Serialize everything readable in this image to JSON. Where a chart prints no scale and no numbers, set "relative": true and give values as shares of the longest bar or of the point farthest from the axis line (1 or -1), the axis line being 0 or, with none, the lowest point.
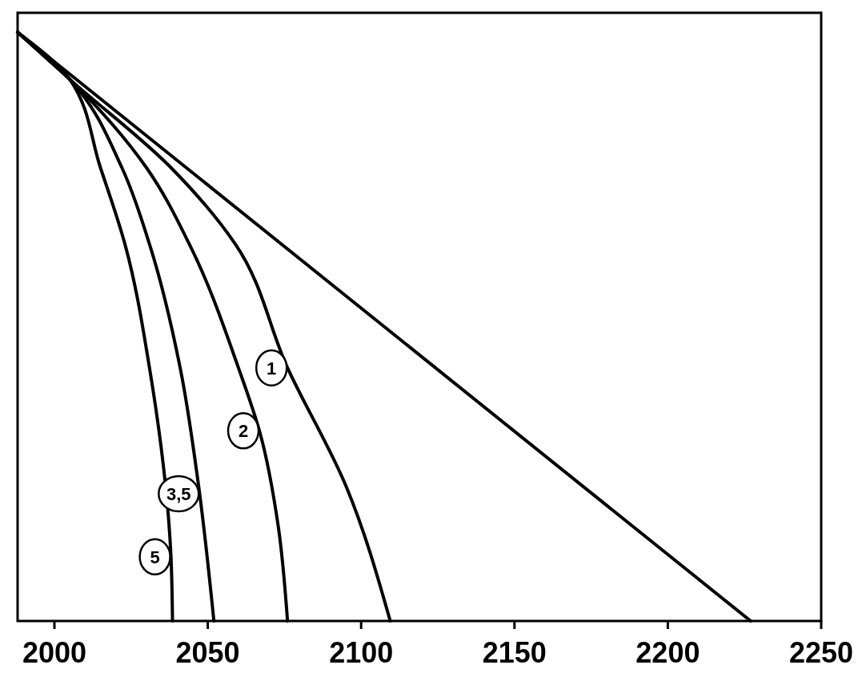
{
  "chart_data": {
    "type": "line",
    "relative": true,
    "xlim": [
      1988,
      2250
    ],
    "xticks": [
      2000,
      2050,
      2100,
      2150,
      2200,
      2250
    ],
    "tick_labels": "x",
    "grid": false,
    "line_style": "solid",
    "series": [
      {
        "x": [
          1988,
          2227
        ],
        "values": [
          1,
          0
        ],
        "color": "#000000"
      },
      {
        "name": "1",
        "x": [
          1988,
          2005,
          2038,
          2059,
          2076,
          2095,
          2109.5
        ],
        "values": [
          1,
          0.92,
          0.77,
          0.64,
          0.43,
          0.23,
          0
        ],
        "color": "#000000"
      },
      {
        "name": "2",
        "x": [
          1988,
          2005,
          2030,
          2044,
          2060,
          2067,
          2073,
          2076
        ],
        "values": [
          1,
          0.92,
          0.77,
          0.64,
          0.43,
          0.32,
          0.16,
          0
        ],
        "color": "#000000"
      },
      {
        "name": "3,5",
        "x": [
          1988,
          2005,
          2022,
          2031,
          2041,
          2047,
          2052
        ],
        "values": [
          1,
          0.92,
          0.77,
          0.64,
          0.43,
          0.23,
          0
        ],
        "color": "#000000"
      },
      {
        "name": "5",
        "x": [
          1988,
          2005,
          2015,
          2023,
          2031,
          2038,
          2038.5
        ],
        "values": [
          1,
          0.92,
          0.77,
          0.64,
          0.43,
          0.11,
          0
        ],
        "color": "#000000"
      }
    ]
  }
}
